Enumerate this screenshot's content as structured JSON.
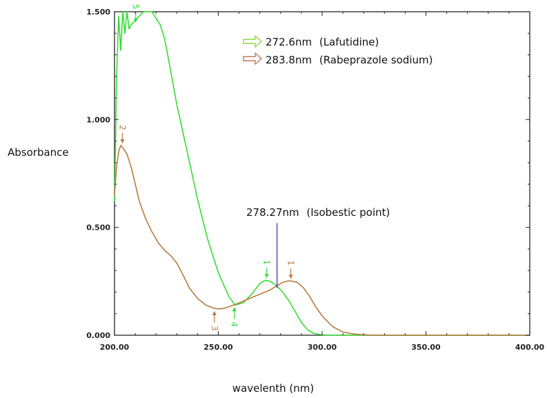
{
  "chart_data": {
    "type": "line",
    "xlabel": "wavelenth (nm)",
    "ylabel": "Absorbance",
    "xlim": [
      200,
      400
    ],
    "ylim": [
      0,
      1.5
    ],
    "x_ticks": [
      "200.00",
      "250.00",
      "300.00",
      "350.00",
      "400.00"
    ],
    "x_tick_values": [
      200,
      250,
      300,
      350,
      400
    ],
    "y_ticks": [
      "0.000",
      "0.500",
      "1.000",
      "1.500"
    ],
    "y_tick_values": [
      0,
      0.5,
      1.0,
      1.5
    ],
    "grid": false,
    "legend_position": "top-right",
    "series": [
      {
        "name": "272.6nm (Lafutidine)",
        "legend_wavelength": "272.6nm",
        "legend_compound": "(Lafutidine)",
        "color": "#33dd33",
        "x": [
          200,
          201,
          202,
          203,
          204,
          205,
          206,
          207,
          208,
          210,
          212,
          214,
          216,
          218,
          220,
          222,
          224,
          226,
          230,
          235,
          240,
          245,
          250,
          255,
          258,
          262,
          266,
          270,
          272.6,
          275,
          278,
          281,
          284,
          287,
          290,
          293,
          296,
          300,
          305,
          320,
          400
        ],
        "y": [
          0.62,
          1.2,
          1.48,
          1.32,
          1.5,
          1.4,
          1.5,
          1.42,
          1.44,
          1.46,
          1.48,
          1.5,
          1.5,
          1.5,
          1.47,
          1.44,
          1.38,
          1.28,
          1.07,
          0.85,
          0.63,
          0.44,
          0.29,
          0.18,
          0.14,
          0.15,
          0.19,
          0.24,
          0.255,
          0.25,
          0.23,
          0.2,
          0.16,
          0.11,
          0.06,
          0.025,
          0.008,
          0.002,
          0,
          0,
          0
        ],
        "peaks": [
          {
            "label": "1",
            "x": 273.3,
            "y": 0.255
          },
          {
            "label": "4",
            "x": 257.7,
            "y": 0.14
          },
          {
            "label": "5",
            "x": 210.2,
            "y": 1.44
          }
        ]
      },
      {
        "name": "283.8nm (Rabeprazole sodium)",
        "legend_wavelength": "283.8nm",
        "legend_compound": "(Rabeprazole sodium)",
        "color": "#b87a3d",
        "x": [
          200,
          201,
          202,
          203,
          204,
          206,
          208,
          210,
          212,
          215,
          218,
          221,
          224,
          227,
          230,
          233,
          236,
          240,
          244,
          248,
          250,
          253,
          256,
          260,
          265,
          270,
          275,
          278,
          281,
          283.8,
          286,
          288,
          291,
          294,
          297,
          300,
          305,
          310,
          315,
          320,
          325,
          400
        ],
        "y": [
          0.65,
          0.78,
          0.85,
          0.88,
          0.87,
          0.84,
          0.78,
          0.7,
          0.62,
          0.54,
          0.48,
          0.43,
          0.395,
          0.37,
          0.335,
          0.28,
          0.22,
          0.17,
          0.14,
          0.125,
          0.122,
          0.125,
          0.135,
          0.15,
          0.17,
          0.19,
          0.21,
          0.228,
          0.245,
          0.252,
          0.25,
          0.245,
          0.22,
          0.18,
          0.13,
          0.09,
          0.04,
          0.015,
          0.006,
          0.002,
          0,
          0
        ],
        "peaks": [
          {
            "label": "1",
            "x": 284.9,
            "y": 0.252
          },
          {
            "label": "2",
            "x": 203.8,
            "y": 0.88
          },
          {
            "label": "3",
            "x": 248.1,
            "y": 0.122
          }
        ]
      }
    ],
    "annotations": [
      {
        "label_wavelength": "278.27nm",
        "label_text": "(Isobestic point)",
        "x": 278.27,
        "y_top": 0.52,
        "y_bottom": 0.22
      }
    ]
  }
}
